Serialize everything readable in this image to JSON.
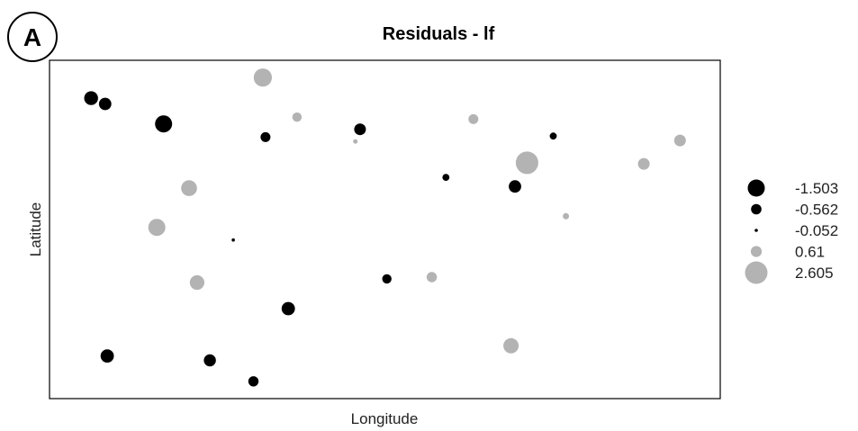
{
  "panel_label": "A",
  "chart_data": {
    "type": "scatter",
    "title": "Residuals - lf",
    "xlabel": "Longitude",
    "ylabel": "Latitude",
    "grid": false,
    "legend_position": "right",
    "colors": {
      "negative": "#000000",
      "positive": "#b3b3b3",
      "frame": "#000000"
    },
    "legend": [
      {
        "label": "-1.503",
        "value": -1.503
      },
      {
        "label": "-0.562",
        "value": -0.562
      },
      {
        "label": "-0.052",
        "value": -0.052
      },
      {
        "label": "0.61",
        "value": 0.61
      },
      {
        "label": "2.605",
        "value": 2.605
      }
    ],
    "xlim": [
      0,
      100
    ],
    "ylim": [
      0,
      100
    ],
    "points": [
      {
        "x": 6.2,
        "y": 88.8,
        "residual": -1.0
      },
      {
        "x": 8.3,
        "y": 87.1,
        "residual": -0.8
      },
      {
        "x": 17.0,
        "y": 81.2,
        "residual": -1.503
      },
      {
        "x": 32.2,
        "y": 77.3,
        "residual": -0.5
      },
      {
        "x": 46.3,
        "y": 79.6,
        "residual": -0.7
      },
      {
        "x": 75.1,
        "y": 77.6,
        "residual": -0.25
      },
      {
        "x": 59.1,
        "y": 65.4,
        "residual": -0.25
      },
      {
        "x": 69.4,
        "y": 62.7,
        "residual": -0.8
      },
      {
        "x": 27.4,
        "y": 46.9,
        "residual": -0.052
      },
      {
        "x": 50.3,
        "y": 35.4,
        "residual": -0.45
      },
      {
        "x": 35.6,
        "y": 26.6,
        "residual": -0.9
      },
      {
        "x": 8.6,
        "y": 12.6,
        "residual": -0.9
      },
      {
        "x": 23.9,
        "y": 11.3,
        "residual": -0.75
      },
      {
        "x": 30.4,
        "y": 5.1,
        "residual": -0.55
      },
      {
        "x": 31.8,
        "y": 94.9,
        "residual": 1.7
      },
      {
        "x": 36.9,
        "y": 83.2,
        "residual": 0.45
      },
      {
        "x": 45.6,
        "y": 76.0,
        "residual": 0.1
      },
      {
        "x": 63.2,
        "y": 82.6,
        "residual": 0.5
      },
      {
        "x": 71.2,
        "y": 69.7,
        "residual": 2.605
      },
      {
        "x": 88.6,
        "y": 69.4,
        "residual": 0.7
      },
      {
        "x": 94.0,
        "y": 76.3,
        "residual": 0.7
      },
      {
        "x": 77.0,
        "y": 53.9,
        "residual": 0.2
      },
      {
        "x": 20.8,
        "y": 62.2,
        "residual": 1.3
      },
      {
        "x": 16.0,
        "y": 50.6,
        "residual": 1.5
      },
      {
        "x": 22.0,
        "y": 34.3,
        "residual": 1.1
      },
      {
        "x": 57.0,
        "y": 35.9,
        "residual": 0.55
      },
      {
        "x": 68.8,
        "y": 15.6,
        "residual": 1.2
      }
    ]
  }
}
